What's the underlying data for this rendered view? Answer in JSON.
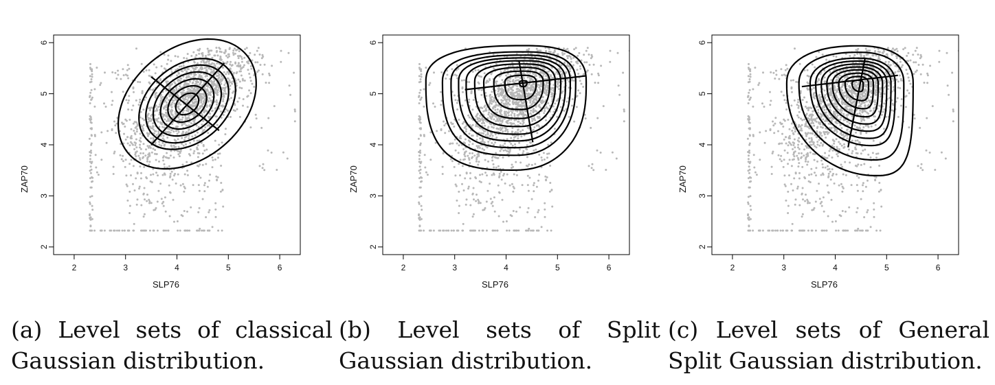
{
  "chart_data": [
    {
      "type": "scatter",
      "panel": "a",
      "xlabel": "SLP76",
      "ylabel": "ZAP70",
      "xticks": [
        2,
        3,
        4,
        5,
        6
      ],
      "yticks": [
        2,
        3,
        4,
        5,
        6
      ],
      "xlim": [
        1.6,
        6.4
      ],
      "ylim": [
        1.85,
        6.15
      ],
      "point_color": "#b8b8b8",
      "contour_color": "#000000",
      "caption": "(a) Level sets of classical Gaussian distribution.",
      "level_sets": {
        "model": "gaussian",
        "center": [
          4.2,
          4.8
        ],
        "angle_deg": 40,
        "radii": [
          0.25,
          0.42,
          0.58,
          0.74,
          0.9,
          1.05,
          1.5
        ],
        "axes": [
          [
            3.5,
            5.33,
            4.82,
            4.28
          ],
          [
            3.5,
            4.0,
            4.92,
            5.6
          ]
        ]
      }
    },
    {
      "type": "scatter",
      "panel": "b",
      "xlabel": "SLP76",
      "ylabel": "ZAP70",
      "xticks": [
        2,
        3,
        4,
        5,
        6
      ],
      "yticks": [
        2,
        3,
        4,
        5,
        6
      ],
      "xlim": [
        1.6,
        6.4
      ],
      "ylim": [
        1.85,
        6.15
      ],
      "point_color": "#b8b8b8",
      "contour_color": "#000000",
      "caption": "(b) Level sets of Split Gaussian distribution.",
      "level_sets": {
        "model": "split-gaussian",
        "center": [
          4.35,
          5.22
        ],
        "radii": [
          0.09,
          0.38,
          0.6,
          0.8,
          0.98,
          1.15,
          1.3,
          1.45,
          1.62,
          1.95
        ],
        "axes": [
          [
            3.2,
            5.08,
            5.55,
            5.35
          ],
          [
            4.25,
            5.65,
            4.52,
            4.05
          ]
        ]
      }
    },
    {
      "type": "scatter",
      "panel": "c",
      "xlabel": "SLP76",
      "ylabel": "ZAP70",
      "xticks": [
        2,
        3,
        4,
        5,
        6
      ],
      "yticks": [
        2,
        3,
        4,
        5,
        6
      ],
      "xlim": [
        1.6,
        6.4
      ],
      "ylim": [
        1.85,
        6.15
      ],
      "point_color": "#b8b8b8",
      "contour_color": "#000000",
      "caption": "(c) Level sets of General Split Gaussian distribution.",
      "level_sets": {
        "model": "general-split-gaussian",
        "center": [
          4.45,
          5.2
        ],
        "radii": [
          0.18,
          0.38,
          0.56,
          0.74,
          0.9,
          1.06,
          1.22,
          1.38,
          1.7,
          2.05
        ],
        "axes": [
          [
            3.35,
            5.14,
            5.22,
            5.36
          ],
          [
            4.58,
            5.7,
            4.25,
            3.95
          ]
        ]
      }
    }
  ]
}
